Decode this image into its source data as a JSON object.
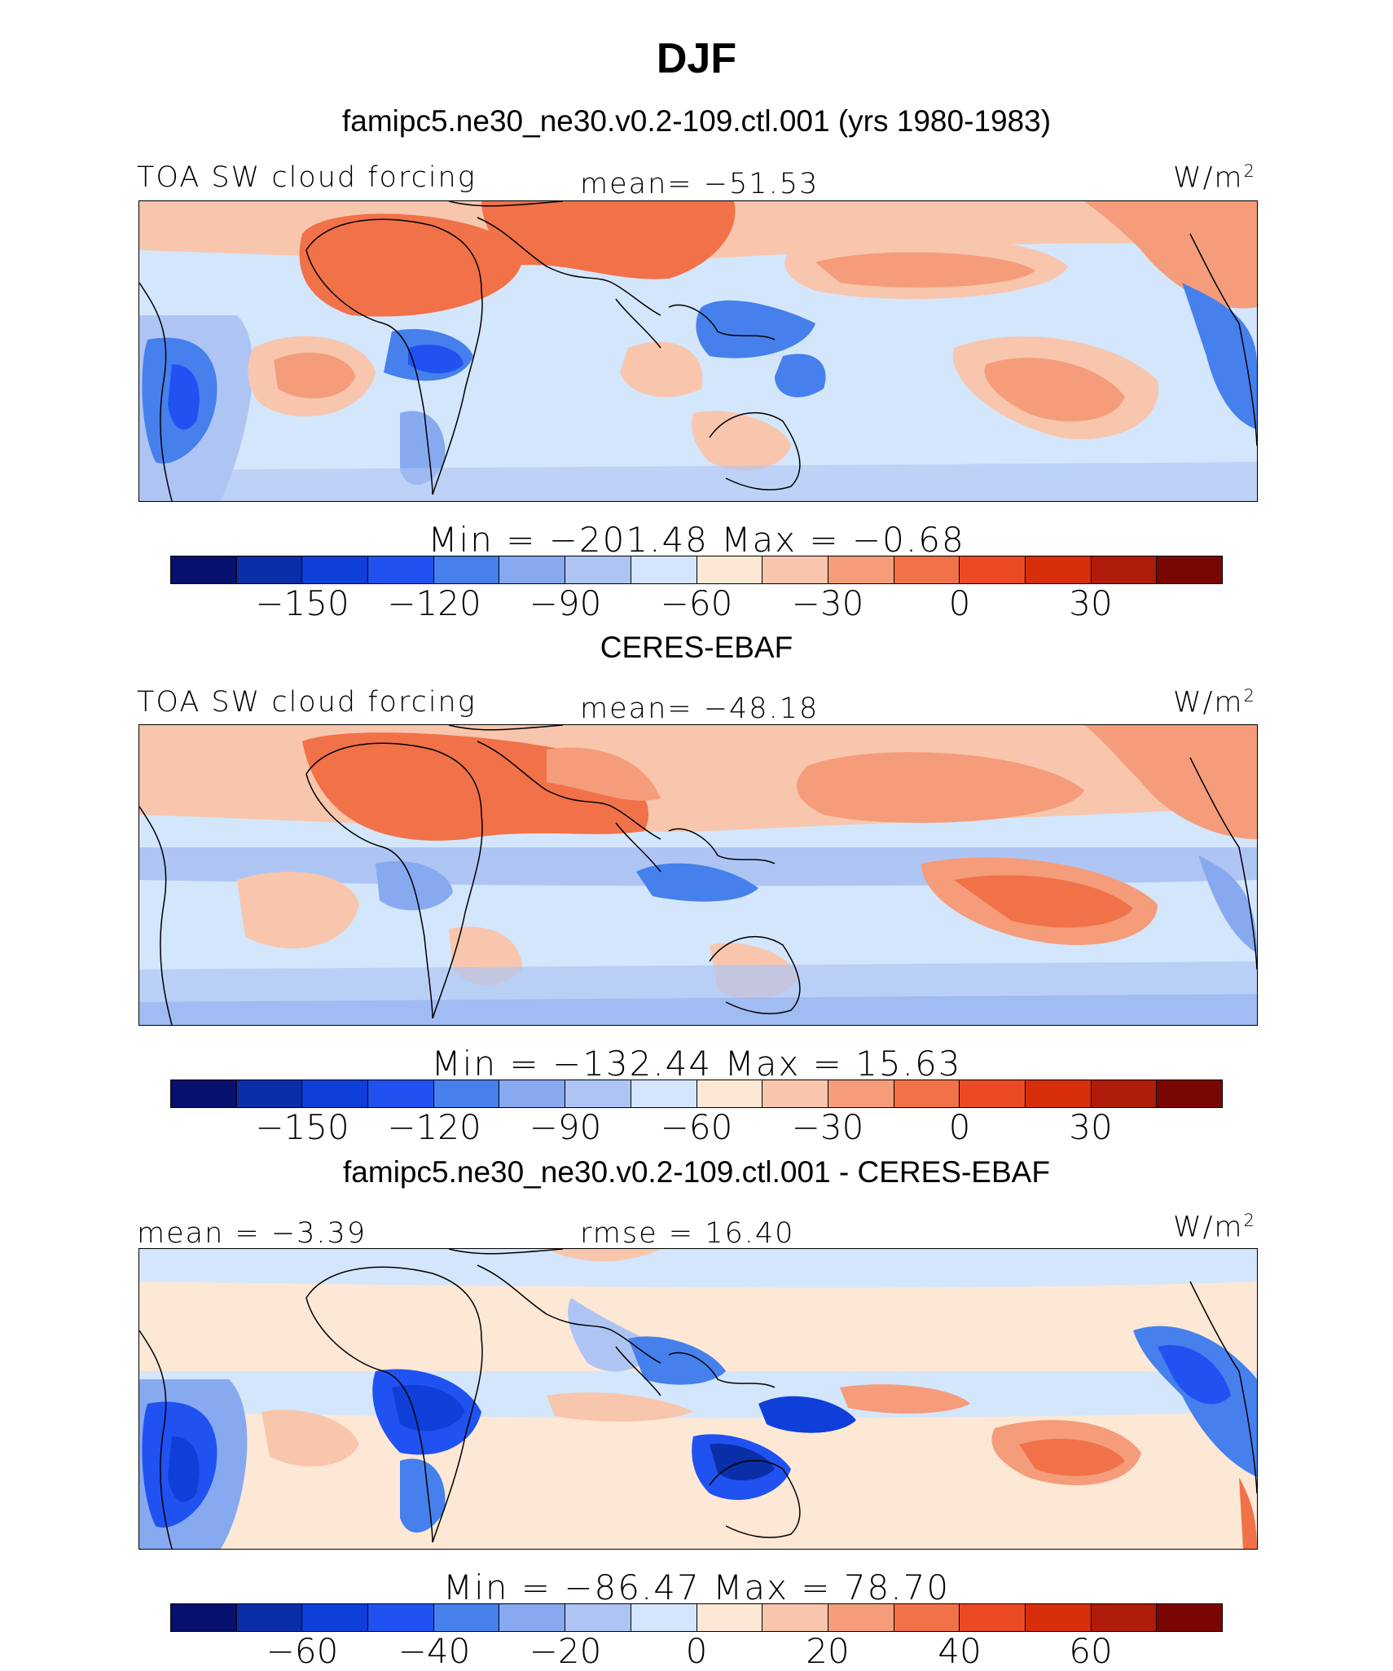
{
  "title": "DJF",
  "colors": [
    "#08106e",
    "#0a2ea8",
    "#0e3fd8",
    "#2052f2",
    "#4680ec",
    "#87a9ef",
    "#aec5f4",
    "#d4e6fb",
    "#fde8d6",
    "#f8c6ad",
    "#f59c7b",
    "#f17148",
    "#eb4a24",
    "#d82e0c",
    "#b01c0a",
    "#7a0604"
  ],
  "panels": [
    {
      "subtitle": "famipc5.ne30_ne30.v0.2-109.ctl.001 (yrs 1980-1983)",
      "left_label": "TOA SW cloud forcing",
      "center_label": "mean= −51.53",
      "units": "W/m",
      "units_sup": "2",
      "stats": "Min  =  −201.48  Max  =    −0.68",
      "ticks": [
        "−150",
        "−120",
        "−90",
        "−60",
        "−30",
        "0",
        "30"
      ]
    },
    {
      "subtitle": "CERES-EBAF",
      "left_label": "TOA SW cloud forcing",
      "center_label": "mean= −48.18",
      "units": "W/m",
      "units_sup": "2",
      "stats": "Min  =  −132.44  Max  =    15.63",
      "ticks": [
        "−150",
        "−120",
        "−90",
        "−60",
        "−30",
        "0",
        "30"
      ]
    },
    {
      "subtitle": "famipc5.ne30_ne30.v0.2-109.ctl.001 - CERES-EBAF",
      "left_label": "mean  =   −3.39",
      "center_label": "rmse  =   16.40",
      "units": "W/m",
      "units_sup": "2",
      "stats": "Min  =  −86.47  Max  =   78.70",
      "ticks": [
        "−60",
        "−40",
        "−20",
        "0",
        "20",
        "40",
        "60"
      ]
    }
  ]
}
